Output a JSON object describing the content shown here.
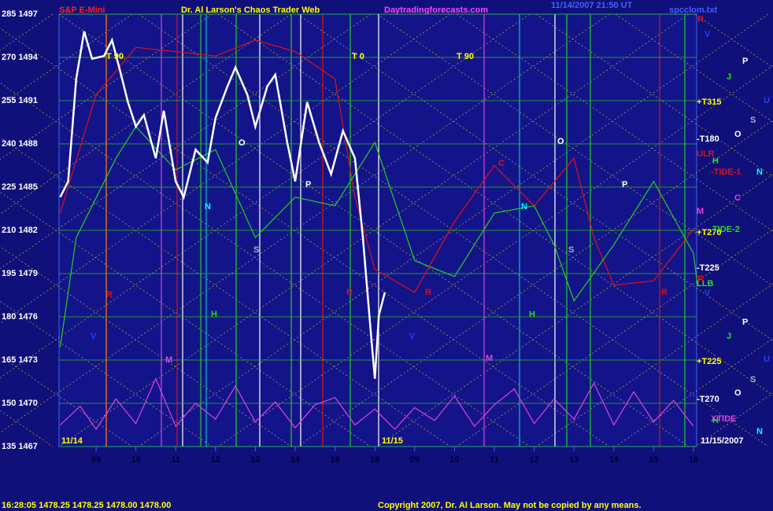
{
  "header": {
    "left": "S&P E-Mini",
    "title": "Dr. Al Larson's Chaos Trader Web",
    "site": "Daytradingforecasts.com",
    "stamp": "11/14/2007 21:50 UT",
    "file": "spcclom.txt"
  },
  "footer": {
    "quote": "16:28:05  1478.25  1478.25  1478.00  1478.00",
    "copyright": "Copyright 2007, Dr. Al Larson. May not be copied by any means."
  },
  "chart_data": {
    "type": "line",
    "ylim": [
      1467,
      1497
    ],
    "yticks": [
      {
        "value": 1497,
        "label": "285 1497"
      },
      {
        "value": 1494,
        "label": "270 1494"
      },
      {
        "value": 1491,
        "label": "255 1491"
      },
      {
        "value": 1488,
        "label": "240 1488"
      },
      {
        "value": 1485,
        "label": "225 1485"
      },
      {
        "value": 1482,
        "label": "210 1482"
      },
      {
        "value": 1479,
        "label": "195 1479"
      },
      {
        "value": 1476,
        "label": "180 1476"
      },
      {
        "value": 1473,
        "label": "165 1473"
      },
      {
        "value": 1470,
        "label": "150 1470"
      },
      {
        "value": 1467,
        "label": "135 1467"
      }
    ],
    "xlim": [
      -0.93,
      15.08
    ],
    "xticks": [
      {
        "value": 0,
        "label": "09"
      },
      {
        "value": 1,
        "label": "10"
      },
      {
        "value": 2,
        "label": "11"
      },
      {
        "value": 3,
        "label": "12"
      },
      {
        "value": 4,
        "label": "13"
      },
      {
        "value": 5,
        "label": "14"
      },
      {
        "value": 6,
        "label": "15"
      },
      {
        "value": 7,
        "label": "16"
      },
      {
        "value": 8,
        "label": "09"
      },
      {
        "value": 9,
        "label": "10"
      },
      {
        "value": 10,
        "label": "11"
      },
      {
        "value": 11,
        "label": "12"
      },
      {
        "value": 12,
        "label": "13"
      },
      {
        "value": 13,
        "label": "14"
      },
      {
        "value": 14,
        "label": "15"
      },
      {
        "value": 15,
        "label": "16"
      }
    ],
    "series": [
      {
        "name": "TIDE-1",
        "color": "#e01010",
        "x": [
          -0.9,
          0,
          1,
          2,
          3,
          4,
          5,
          6,
          6.5,
          7,
          8,
          9,
          10,
          11,
          12,
          12.5,
          13,
          14,
          15
        ],
        "values": [
          1483.2,
          1491.4,
          1494.7,
          1494.4,
          1494.1,
          1495.2,
          1494.4,
          1492.5,
          1484.3,
          1479.3,
          1477.7,
          1482.6,
          1486.5,
          1483.7,
          1487.0,
          1481.5,
          1478.2,
          1478.5,
          1482.1
        ]
      },
      {
        "name": "TIDE-2",
        "color": "#20d020",
        "x": [
          -0.9,
          -0.5,
          0.5,
          1,
          2,
          3,
          4,
          5,
          6,
          7,
          8,
          9,
          10,
          11,
          11.5,
          12,
          13,
          14,
          15,
          15.1
        ],
        "values": [
          1473.9,
          1481.5,
          1487.0,
          1489.2,
          1486.2,
          1487.6,
          1481.5,
          1484.3,
          1483.7,
          1488.1,
          1479.9,
          1478.8,
          1483.2,
          1483.7,
          1481.0,
          1477.1,
          1481.0,
          1485.4,
          1480.4,
          1478.2
        ]
      },
      {
        "name": "XTIDE",
        "color": "#e040e0",
        "x": [
          -0.9,
          -0.4,
          0,
          0.5,
          1,
          1.5,
          2,
          2.5,
          3,
          3.5,
          4,
          4.5,
          5,
          5.5,
          6,
          6.5,
          7,
          7.5,
          8,
          8.5,
          9,
          9.5,
          10,
          10.5,
          11,
          11.5,
          12,
          12.5,
          13,
          13.5,
          14,
          14.5,
          15
        ],
        "values": [
          1468.5,
          1469.8,
          1468.2,
          1470.3,
          1468.6,
          1471.7,
          1468.4,
          1470.0,
          1468.9,
          1471.2,
          1468.7,
          1470.1,
          1468.3,
          1469.9,
          1470.4,
          1468.5,
          1469.6,
          1468.2,
          1469.7,
          1468.8,
          1470.5,
          1468.4,
          1469.9,
          1471.0,
          1468.6,
          1470.3,
          1468.9,
          1471.4,
          1468.5,
          1470.8,
          1468.7,
          1470.2,
          1468.4
        ]
      },
      {
        "name": "S&P E-Mini",
        "color": "#ffffff",
        "x": [
          -0.9,
          -0.7,
          -0.5,
          -0.3,
          -0.1,
          0.2,
          0.4,
          0.6,
          0.8,
          1.0,
          1.2,
          1.5,
          1.7,
          2.0,
          2.2,
          2.5,
          2.8,
          3.0,
          3.3,
          3.5,
          3.8,
          4.0,
          4.3,
          4.5,
          4.8,
          5.0,
          5.3,
          5.6,
          5.9,
          6.2,
          6.5,
          6.7,
          6.9,
          7.0,
          7.1,
          7.25
        ],
        "values": [
          1484.3,
          1485.4,
          1492.5,
          1495.8,
          1493.9,
          1494.1,
          1495.2,
          1493.1,
          1490.9,
          1489.2,
          1490.0,
          1487.0,
          1490.3,
          1485.4,
          1484.3,
          1487.6,
          1486.7,
          1489.8,
          1492.0,
          1493.3,
          1491.4,
          1489.2,
          1492.0,
          1492.8,
          1488.1,
          1485.4,
          1490.9,
          1488.1,
          1485.9,
          1488.9,
          1487.0,
          1481.5,
          1474.9,
          1471.7,
          1476.1,
          1477.7
        ]
      }
    ],
    "annotations": [
      {
        "text": "T 90",
        "color": "#ffff00"
      },
      {
        "text": "T 0",
        "color": "#ffff00"
      },
      {
        "text": "T 90",
        "color": "#ffff00"
      },
      {
        "text": "O",
        "color": "#ffffff"
      },
      {
        "text": "P",
        "color": "#ffffff"
      },
      {
        "text": "N",
        "color": "#00ffff"
      },
      {
        "text": "S",
        "color": "#b0b0b0"
      },
      {
        "text": "H",
        "color": "#20e020"
      },
      {
        "text": "R",
        "color": "#e01010"
      },
      {
        "text": "V",
        "color": "#2040ff"
      },
      {
        "text": "M",
        "color": "#e040e0"
      },
      {
        "text": "C",
        "color": "#e01010"
      },
      {
        "text": "O",
        "color": "#ffffff"
      },
      {
        "text": "N",
        "color": "#00ffff"
      },
      {
        "text": "P",
        "color": "#ffffff"
      },
      {
        "text": "S",
        "color": "#b0b0b0"
      },
      {
        "text": "H",
        "color": "#20e020"
      },
      {
        "text": "R",
        "color": "#e01010"
      },
      {
        "text": "V",
        "color": "#2040ff"
      },
      {
        "text": "M",
        "color": "#e040e0"
      },
      {
        "text": "R",
        "color": "#e01010"
      },
      {
        "text": "R",
        "color": "#e01010"
      },
      {
        "text": "11/14",
        "color": "#ffff00"
      },
      {
        "text": "11/15",
        "color": "#ffff00"
      },
      {
        "text": "+T315",
        "color": "#ffff00"
      },
      {
        "text": "-T180",
        "color": "#ffffff"
      },
      {
        "text": "ULR",
        "color": "#e01010"
      },
      {
        "text": "-TIDE-1",
        "color": "#e01010"
      },
      {
        "text": "M",
        "color": "#e040e0"
      },
      {
        "text": "+T270",
        "color": "#ffff00"
      },
      {
        "text": "TIDE-2",
        "color": "#20e020"
      },
      {
        "text": "-T225",
        "color": "#ffffff"
      },
      {
        "text": "LLB",
        "color": "#20e020"
      },
      {
        "text": "+T225",
        "color": "#ffff00"
      },
      {
        "text": "-T270",
        "color": "#ffffff"
      },
      {
        "text": "XTIDE",
        "color": "#e040e0"
      },
      {
        "text": "11/15/2007",
        "color": "#ffffff"
      },
      {
        "text": "R",
        "color": "#e01010"
      },
      {
        "text": "V",
        "color": "#2040ff"
      },
      {
        "text": "P",
        "color": "#ffffff"
      },
      {
        "text": "J",
        "color": "#20e020"
      },
      {
        "text": "U",
        "color": "#2040ff"
      },
      {
        "text": "S",
        "color": "#b0b0b0"
      },
      {
        "text": "O",
        "color": "#ffffff"
      },
      {
        "text": "H",
        "color": "#20e020"
      },
      {
        "text": "N",
        "color": "#00ffff"
      },
      {
        "text": "C",
        "color": "#e040e0"
      },
      {
        "text": "R",
        "color": "#e01010"
      },
      {
        "text": "V",
        "color": "#2040ff"
      },
      {
        "text": "P",
        "color": "#ffffff"
      },
      {
        "text": "J",
        "color": "#20e020"
      },
      {
        "text": "U",
        "color": "#2040ff"
      },
      {
        "text": "S",
        "color": "#b0b0b0"
      },
      {
        "text": "O",
        "color": "#ffffff"
      },
      {
        "text": "H",
        "color": "#20e020"
      },
      {
        "text": "N",
        "color": "#00ffff"
      }
    ]
  }
}
